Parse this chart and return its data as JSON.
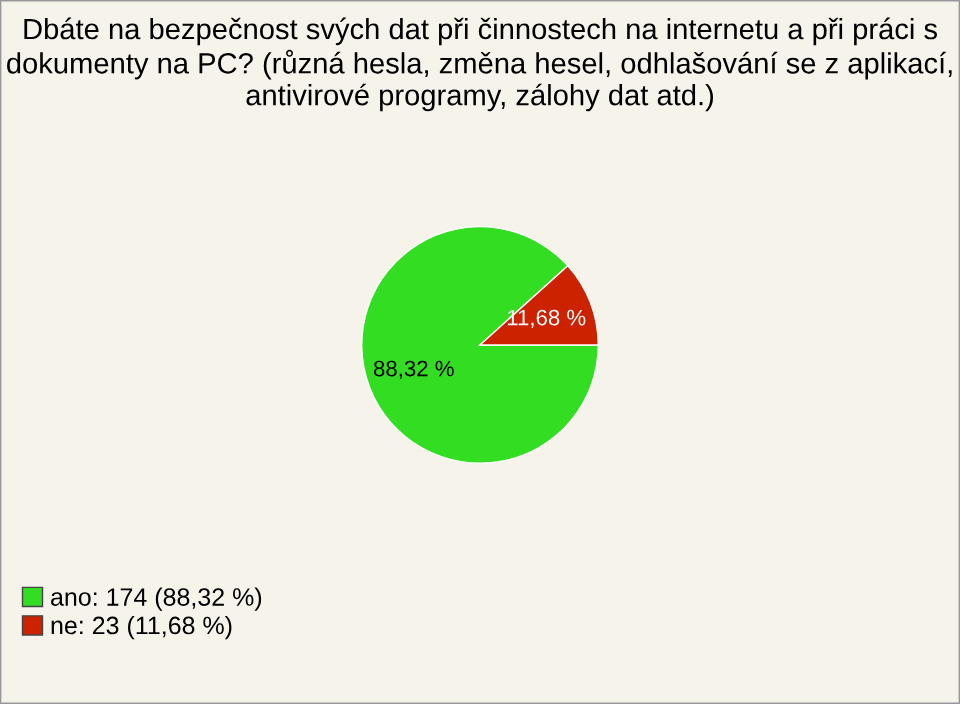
{
  "chart_data": {
    "type": "pie",
    "title": "Dbáte na bezpečnost svých dat při činnostech na internetu a při práci s dokumenty na PC? (různá hesla, změna hesel, odhlašování se z aplikací, antivirové programy, zálohy dat atd.)",
    "categories": [
      "ano: 174 (88,32 %)",
      "ne: 23 (11,68 %)"
    ],
    "values": [
      88.32,
      11.68
    ],
    "colors": [
      "#33dd22",
      "#cc2200"
    ],
    "value_labels": [
      "88,32 %",
      "11,68 %"
    ],
    "legend": "bottom left"
  }
}
